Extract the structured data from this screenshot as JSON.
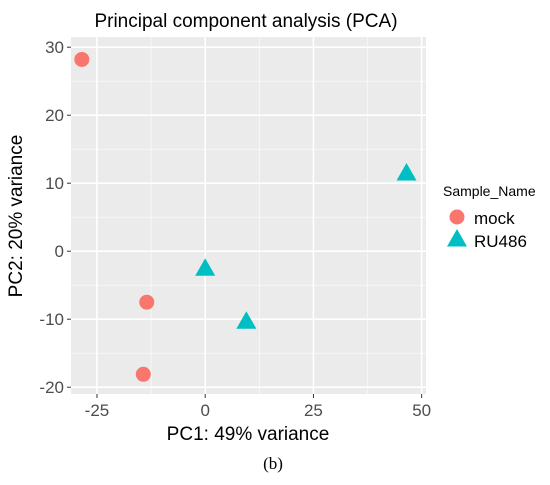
{
  "chart_data": {
    "type": "scatter",
    "title": "Principal component analysis (PCA)",
    "xlabel": "PC1: 49% variance",
    "ylabel": "PC2: 20% variance",
    "xlim": [
      -31,
      51
    ],
    "ylim": [
      -21,
      31.5
    ],
    "xticks": [
      -25,
      0,
      25,
      50
    ],
    "yticks": [
      -20,
      -10,
      0,
      10,
      20,
      30
    ],
    "xtick_labels": [
      "-25",
      "0",
      "25",
      "50"
    ],
    "ytick_labels": [
      "-20",
      "-10",
      "0",
      "10",
      "20",
      "30"
    ],
    "grid": true,
    "panel_background": "#ebebeb",
    "legend": {
      "title": "Sample_Name",
      "position": "right"
    },
    "series": [
      {
        "name": "mock",
        "marker": "circle",
        "color": "#f8766d",
        "points": [
          {
            "x": -28.5,
            "y": 28.2
          },
          {
            "x": -13.5,
            "y": -7.5
          },
          {
            "x": -14.3,
            "y": -18.1
          }
        ]
      },
      {
        "name": "RU486",
        "marker": "triangle",
        "color": "#00bfc4",
        "points": [
          {
            "x": 0.0,
            "y": -2.5
          },
          {
            "x": 9.5,
            "y": -10.3
          },
          {
            "x": 46.5,
            "y": 11.5
          }
        ]
      }
    ]
  },
  "caption": "(b)"
}
